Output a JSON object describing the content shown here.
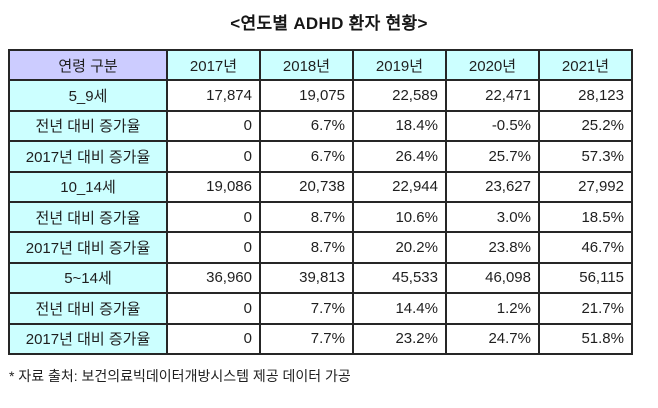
{
  "title": "<연도별 ADHD 환자 현황>",
  "footnote": "* 자료 출처: 보건의료빅데이터개방시스템 제공 데이터 가공",
  "colors": {
    "corner_header_bg": "#ccccff",
    "header_bg": "#ccffff",
    "label_bg": "#ccffff",
    "cell_bg": "#ffffff",
    "border": "#262626",
    "text": "#1f1f1f"
  },
  "table": {
    "header": [
      "연령 구분",
      "2017년",
      "2018년",
      "2019년",
      "2020년",
      "2021년"
    ],
    "rows": [
      {
        "label": "5_9세",
        "values": [
          "17,874",
          "19,075",
          "22,589",
          "22,471",
          "28,123"
        ]
      },
      {
        "label": "전년 대비 증가율",
        "values": [
          "0",
          "6.7%",
          "18.4%",
          "-0.5%",
          "25.2%"
        ]
      },
      {
        "label": "2017년 대비 증가율",
        "values": [
          "0",
          "6.7%",
          "26.4%",
          "25.7%",
          "57.3%"
        ]
      },
      {
        "label": "10_14세",
        "values": [
          "19,086",
          "20,738",
          "22,944",
          "23,627",
          "27,992"
        ]
      },
      {
        "label": "전년 대비 증가율",
        "values": [
          "0",
          "8.7%",
          "10.6%",
          "3.0%",
          "18.5%"
        ]
      },
      {
        "label": "2017년 대비 증가율",
        "values": [
          "0",
          "8.7%",
          "20.2%",
          "23.8%",
          "46.7%"
        ]
      },
      {
        "label": "5~14세",
        "values": [
          "36,960",
          "39,813",
          "45,533",
          "46,098",
          "56,115"
        ]
      },
      {
        "label": "전년 대비 증가율",
        "values": [
          "0",
          "7.7%",
          "14.4%",
          "1.2%",
          "21.7%"
        ]
      },
      {
        "label": "2017년 대비 증가율",
        "values": [
          "0",
          "7.7%",
          "23.2%",
          "24.7%",
          "51.8%"
        ]
      }
    ]
  },
  "chart_data": {
    "type": "table",
    "title": "<연도별 ADHD 환자 현황>",
    "columns": [
      "연령 구분",
      "2017년",
      "2018년",
      "2019년",
      "2020년",
      "2021년"
    ],
    "rows": [
      [
        "5_9세",
        17874,
        19075,
        22589,
        22471,
        28123
      ],
      [
        "전년 대비 증가율",
        0,
        "6.7%",
        "18.4%",
        "-0.5%",
        "25.2%"
      ],
      [
        "2017년 대비 증가율",
        0,
        "6.7%",
        "26.4%",
        "25.7%",
        "57.3%"
      ],
      [
        "10_14세",
        19086,
        20738,
        22944,
        23627,
        27992
      ],
      [
        "전년 대비 증가율",
        0,
        "8.7%",
        "10.6%",
        "3.0%",
        "18.5%"
      ],
      [
        "2017년 대비 증가율",
        0,
        "8.7%",
        "20.2%",
        "23.8%",
        "46.7%"
      ],
      [
        "5~14세",
        36960,
        39813,
        45533,
        46098,
        56115
      ],
      [
        "전년 대비 증가율",
        0,
        "7.7%",
        "14.4%",
        "1.2%",
        "21.7%"
      ],
      [
        "2017년 대비 증가율",
        0,
        "7.7%",
        "23.2%",
        "24.7%",
        "51.8%"
      ]
    ],
    "source_note": "* 자료 출처: 보건의료빅데이터개방시스템 제공 데이터 가공"
  }
}
